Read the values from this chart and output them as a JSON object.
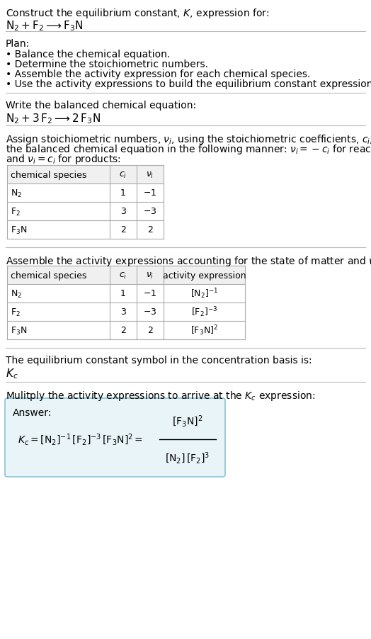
{
  "title_line1": "Construct the equilibrium constant, $K$, expression for:",
  "title_line2": "$\\mathrm{N_2 + F_2 \\longrightarrow F_3N}$",
  "plan_header": "Plan:",
  "plan_items": [
    "• Balance the chemical equation.",
    "• Determine the stoichiometric numbers.",
    "• Assemble the activity expression for each chemical species.",
    "• Use the activity expressions to build the equilibrium constant expression."
  ],
  "balanced_header": "Write the balanced chemical equation:",
  "balanced_eq": "$\\mathrm{N_2 + 3\\,F_2 \\longrightarrow 2\\,F_3N}$",
  "stoich_intro_lines": [
    "Assign stoichiometric numbers, $\\nu_i$, using the stoichiometric coefficients, $c_i$, from",
    "the balanced chemical equation in the following manner: $\\nu_i = -c_i$ for reactants",
    "and $\\nu_i = c_i$ for products:"
  ],
  "table1_headers": [
    "chemical species",
    "$c_i$",
    "$\\nu_i$"
  ],
  "table1_rows": [
    [
      "$\\mathrm{N_2}$",
      "1",
      "$-1$"
    ],
    [
      "$\\mathrm{F_2}$",
      "3",
      "$-3$"
    ],
    [
      "$\\mathrm{F_3N}$",
      "2",
      "2"
    ]
  ],
  "activity_intro": "Assemble the activity expressions accounting for the state of matter and $\\nu_i$:",
  "table2_headers": [
    "chemical species",
    "$c_i$",
    "$\\nu_i$",
    "activity expression"
  ],
  "table2_rows": [
    [
      "$\\mathrm{N_2}$",
      "1",
      "$-1$",
      "$[\\mathrm{N_2}]^{-1}$"
    ],
    [
      "$\\mathrm{F_2}$",
      "3",
      "$-3$",
      "$[\\mathrm{F_2}]^{-3}$"
    ],
    [
      "$\\mathrm{F_3N}$",
      "2",
      "2",
      "$[\\mathrm{F_3N}]^2$"
    ]
  ],
  "kc_header": "The equilibrium constant symbol in the concentration basis is:",
  "kc_symbol": "$K_c$",
  "multiply_header": "Mulitply the activity expressions to arrive at the $K_c$ expression:",
  "answer_label": "Answer:",
  "answer_eq_lhs": "$K_c = [\\mathrm{N_2}]^{-1}\\,[\\mathrm{F_2}]^{-3}\\,[\\mathrm{F_3N}]^2 = $",
  "answer_num": "$[\\mathrm{F_3N}]^2$",
  "answer_den": "$[\\mathrm{N_2}]\\,[\\mathrm{F_2}]^3$",
  "bg_color": "#ffffff",
  "table_header_bg": "#f0f0f0",
  "table_border_color": "#aaaaaa",
  "answer_box_bg": "#e8f4f8",
  "answer_box_border": "#89c4d4",
  "text_color": "#000000",
  "font_size": 10,
  "small_font": 9
}
